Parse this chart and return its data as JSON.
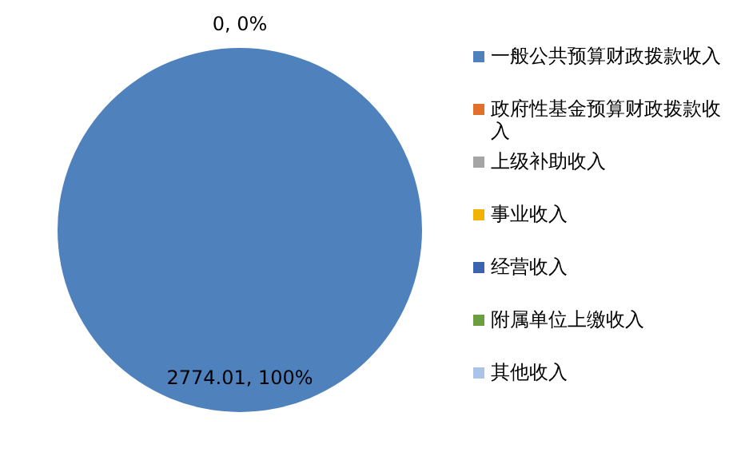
{
  "chart_data": {
    "type": "pie",
    "categories": [
      "一般公共预算财政拨款收入",
      "政府性基金预算财政拨款收入",
      "上级补助收入",
      "事业收入",
      "经营收入",
      "附属单位上缴收入",
      "其他收入"
    ],
    "values": [
      2774.01,
      0,
      0,
      0,
      0,
      0,
      0
    ],
    "colors": [
      "#4f81bd",
      "#e0702a",
      "#a5a5a5",
      "#f0b400",
      "#3a64ae",
      "#6b9e3e",
      "#a9c4e6"
    ],
    "value_labels": [
      "2774.01, 100%",
      "0, 0%",
      null,
      null,
      null,
      null,
      null
    ],
    "legend": "right"
  }
}
